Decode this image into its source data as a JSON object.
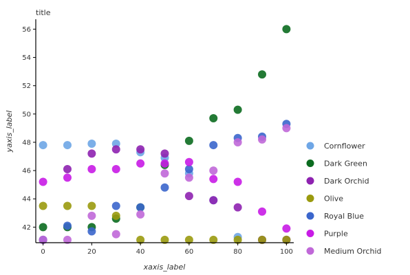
{
  "chart_data": {
    "type": "scatter",
    "title": "title",
    "xlabel": "xaxis_label",
    "ylabel": "yaxis_label",
    "xlim": [
      -3,
      103
    ],
    "ylim": [
      40.9,
      56.7
    ],
    "xticks": [
      0,
      20,
      40,
      60,
      80,
      100
    ],
    "yticks": [
      42,
      44,
      46,
      48,
      50,
      52,
      54,
      56
    ],
    "grid": false,
    "legend_position": "right",
    "series": [
      {
        "name": "Cornflower",
        "color": "#6ea6e6",
        "x": [
          0,
          10,
          20,
          30,
          40,
          50,
          60,
          70,
          80,
          90,
          100
        ],
        "y": [
          47.8,
          47.8,
          47.9,
          47.9,
          47.3,
          46.9,
          45.8,
          43.9,
          41.3,
          41.1,
          41.1
        ]
      },
      {
        "name": "Dark Green",
        "color": "#0b6b1f",
        "x": [
          0,
          10,
          20,
          30,
          40,
          50,
          60,
          70,
          80,
          90,
          100
        ],
        "y": [
          42.0,
          42.0,
          42.0,
          42.6,
          43.4,
          46.4,
          48.1,
          49.7,
          50.3,
          52.8,
          56.0
        ]
      },
      {
        "name": "Dark Orchid",
        "color": "#8e22b0",
        "x": [
          0,
          10,
          20,
          30,
          40,
          50,
          60,
          70,
          80,
          90,
          100
        ],
        "y": [
          41.1,
          46.1,
          47.2,
          47.5,
          47.5,
          47.2,
          44.2,
          43.9,
          43.4,
          41.1,
          41.1
        ]
      },
      {
        "name": "Olive",
        "color": "#9a9a0e",
        "x": [
          0,
          10,
          20,
          30,
          40,
          50,
          60,
          70,
          80,
          90,
          100
        ],
        "y": [
          43.5,
          43.5,
          43.5,
          42.8,
          41.1,
          41.1,
          41.1,
          41.1,
          41.1,
          41.1,
          41.1
        ]
      },
      {
        "name": "Royal Blue",
        "color": "#3b66cc",
        "x": [
          0,
          10,
          20,
          30,
          40,
          50,
          60,
          70,
          80,
          90,
          100
        ],
        "y": [
          41.1,
          42.1,
          41.7,
          43.5,
          43.4,
          44.8,
          46.1,
          47.8,
          48.3,
          48.4,
          49.3
        ]
      },
      {
        "name": "Purple",
        "color": "#c81be6",
        "x": [
          0,
          10,
          20,
          30,
          40,
          50,
          60,
          70,
          80,
          90,
          100
        ],
        "y": [
          45.2,
          45.5,
          46.1,
          46.1,
          46.5,
          46.5,
          46.6,
          45.4,
          45.2,
          43.1,
          41.9
        ]
      },
      {
        "name": "Medium Orchid",
        "color": "#c068d8",
        "x": [
          0,
          10,
          20,
          30,
          40,
          50,
          60,
          70,
          80,
          90,
          100
        ],
        "y": [
          41.1,
          41.1,
          42.8,
          41.5,
          42.9,
          45.8,
          45.5,
          46.0,
          48.0,
          48.2,
          49.0
        ]
      }
    ]
  }
}
